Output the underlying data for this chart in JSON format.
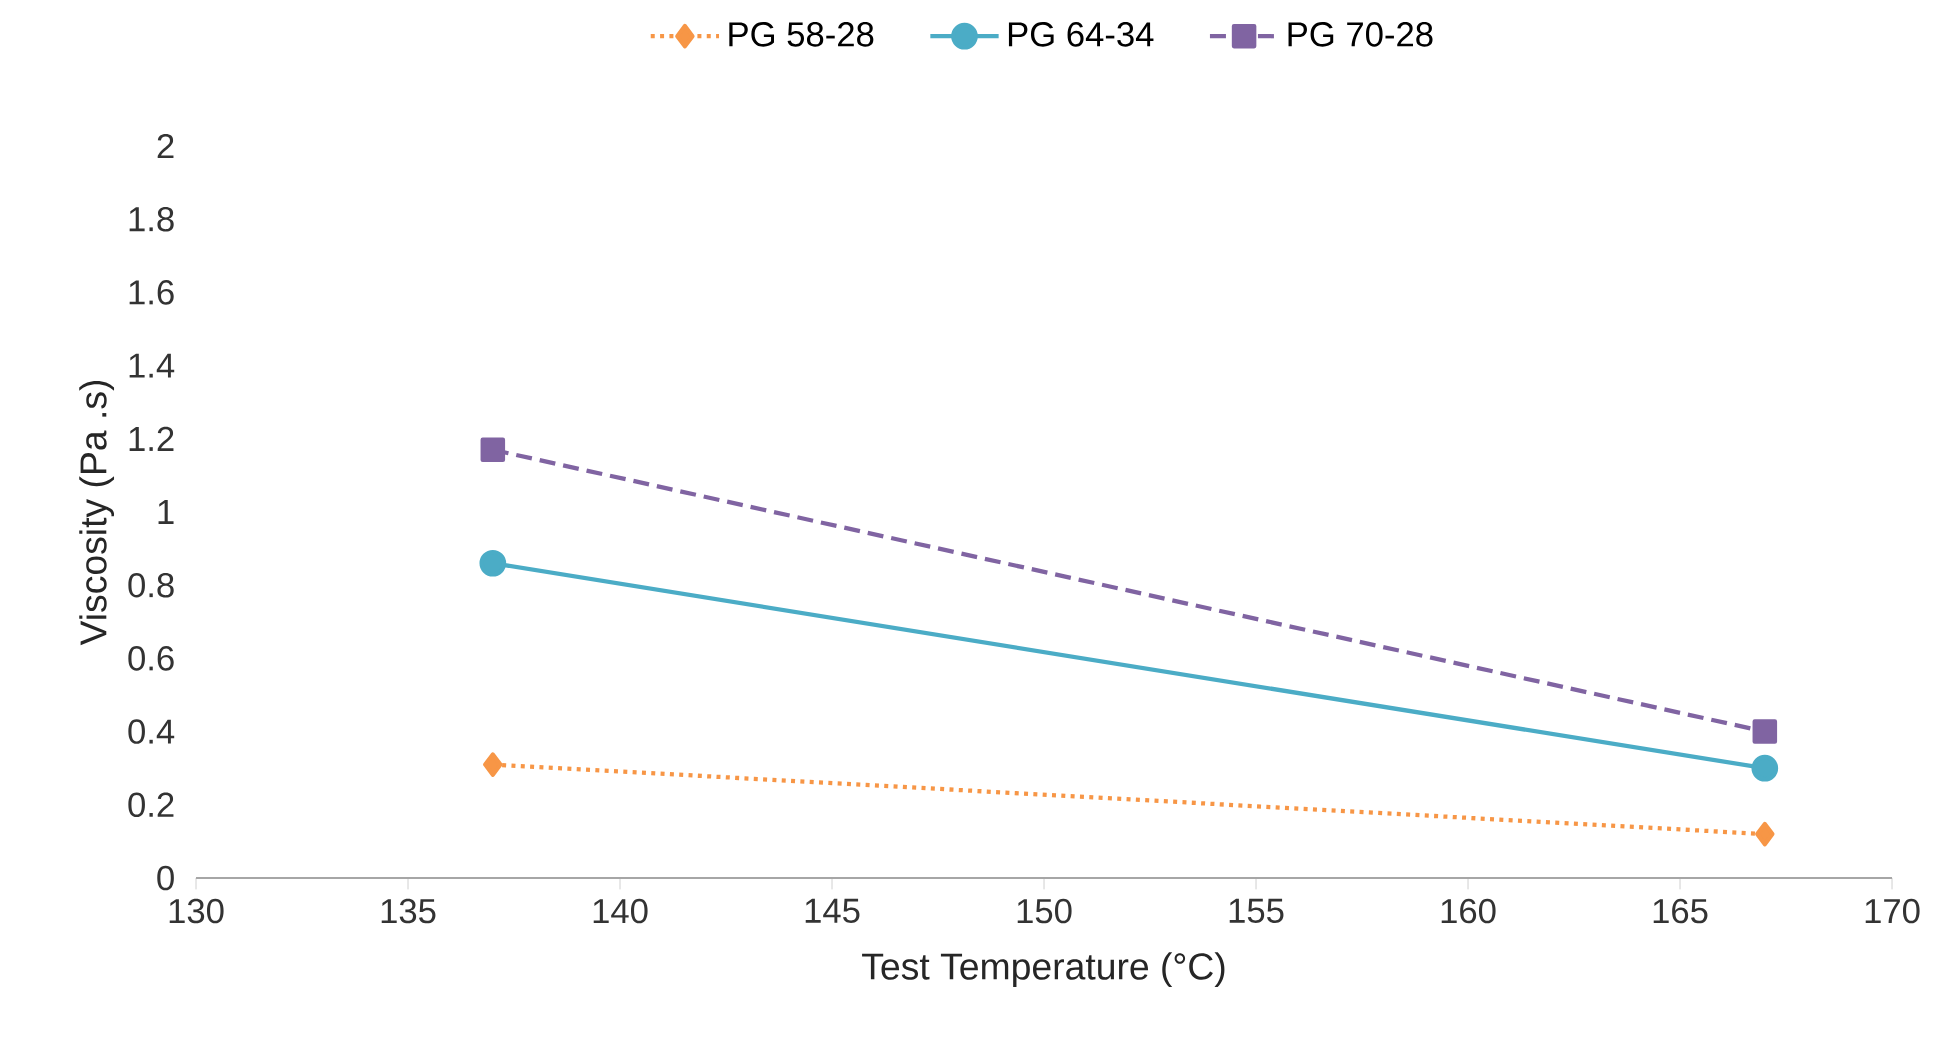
{
  "chart_data": {
    "type": "line",
    "xlabel": "Test Temperature (°C)",
    "ylabel": "Viscosity (Pa .s)",
    "x": [
      137,
      167
    ],
    "xlim": [
      130,
      170
    ],
    "xticks": [
      130,
      135,
      140,
      145,
      150,
      155,
      160,
      165,
      170
    ],
    "ylim": [
      0,
      2
    ],
    "yticks": [
      0,
      0.2,
      0.4,
      0.6,
      0.8,
      1,
      1.2,
      1.4,
      1.6,
      1.8,
      2
    ],
    "legend": "top",
    "grid": false,
    "series": [
      {
        "name": "PG 58-28",
        "color": "#f79646",
        "values": [
          0.31,
          0.12
        ],
        "marker": "diamond",
        "line_style": "dotted"
      },
      {
        "name": "PG 64-34",
        "color": "#4bacc6",
        "values": [
          0.86,
          0.3
        ],
        "marker": "circle",
        "line_style": "solid"
      },
      {
        "name": "PG 70-28",
        "color": "#8064a2",
        "values": [
          1.17,
          0.4
        ],
        "marker": "square",
        "line_style": "dashed"
      }
    ]
  }
}
